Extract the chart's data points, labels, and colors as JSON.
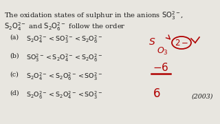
{
  "bg_color": "#e8e6e0",
  "text_color": "#1a1a1a",
  "red_color": "#b00000",
  "title_line1": "The oxidation states of sulphur in the anions $\\mathrm{SO_3^{2-}}$,",
  "title_line2": "$\\mathrm{S_2O_4^{2-}}$ and $\\mathrm{S_2O_6^{2-}}$ follow the order",
  "options": [
    {
      "label": "(a)",
      "text": "$\\mathrm{S_2O_4^{2-} < SO_3^{2-} < S_2O_6^{2-}}$"
    },
    {
      "label": "(b)",
      "text": "$\\mathrm{SO_3^{2-} < S_2O_4^{2-} < S_2O_6^{2-}}$"
    },
    {
      "label": "(c)",
      "text": "$\\mathrm{S_2O_4^{2-} < S_2O_6^{2-} < SO_3^{2-}}$"
    },
    {
      "label": "(d)",
      "text": "$\\mathrm{S_2O_6^{2-} < S_2O_4^{2-} < SO_3^{2-}}$"
    }
  ],
  "year": "(2003)",
  "fs_title": 7.2,
  "fs_option": 6.8,
  "fs_red_large": 11,
  "fs_red_medium": 9,
  "fs_red_small": 8
}
